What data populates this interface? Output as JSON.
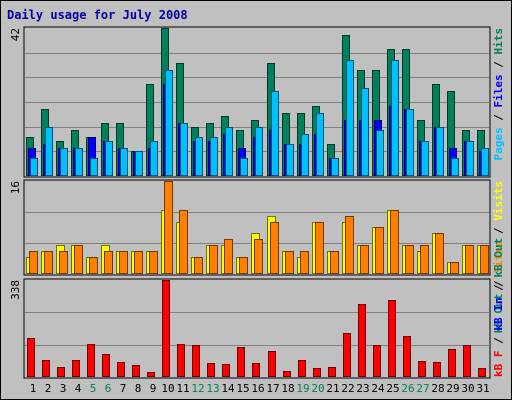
{
  "chart_data": {
    "type": "bar",
    "title": "Daily usage for July 2008",
    "days": [
      "1",
      "2",
      "3",
      "4",
      "5",
      "6",
      "7",
      "8",
      "9",
      "10",
      "11",
      "12",
      "13",
      "14",
      "15",
      "16",
      "17",
      "18",
      "19",
      "20",
      "21",
      "22",
      "23",
      "24",
      "25",
      "26",
      "27",
      "28",
      "29",
      "30",
      "31"
    ],
    "weekend_days": [
      "5",
      "6",
      "12",
      "13",
      "19",
      "20",
      "26",
      "27"
    ],
    "top_panel": {
      "max_label": "42",
      "ymax": 42,
      "legend": [
        "Pages",
        "Files",
        "Hits"
      ],
      "series": [
        {
          "name": "Hits",
          "color": "#00805c",
          "values": [
            11,
            19,
            10,
            13,
            11,
            15,
            15,
            7,
            26,
            42,
            32,
            14,
            15,
            17,
            13,
            16,
            32,
            18,
            18,
            20,
            9,
            40,
            30,
            30,
            36,
            36,
            16,
            26,
            24,
            13,
            13
          ]
        },
        {
          "name": "Files",
          "color": "#0000ff",
          "values": [
            8,
            9,
            8,
            8,
            11,
            10,
            8,
            7,
            8,
            26,
            15,
            10,
            10,
            12,
            8,
            11,
            13,
            9,
            9,
            12,
            5,
            16,
            16,
            16,
            20,
            19,
            10,
            14,
            8,
            10,
            7
          ]
        },
        {
          "name": "Pages",
          "color": "#00c0ff",
          "values": [
            5,
            14,
            8,
            8,
            5,
            10,
            8,
            7,
            10,
            30,
            15,
            11,
            11,
            14,
            5,
            14,
            24,
            9,
            12,
            18,
            5,
            33,
            25,
            13,
            33,
            19,
            10,
            14,
            5,
            10,
            8
          ]
        }
      ]
    },
    "middle_panel": {
      "max_label": "16",
      "ymax": 16,
      "legend": [
        "kB Out",
        "Sites",
        "Visits"
      ],
      "series": [
        {
          "name": "Visits",
          "color": "#ffff00",
          "values": [
            3,
            4,
            5,
            5,
            3,
            5,
            4,
            4,
            4,
            11,
            9,
            3,
            5,
            5,
            3,
            7,
            10,
            4,
            3,
            9,
            4,
            9,
            5,
            8,
            11,
            5,
            4,
            7,
            2,
            5,
            5
          ]
        },
        {
          "name": "Sites",
          "color": "#ff8000",
          "values": [
            4,
            4,
            4,
            5,
            3,
            4,
            4,
            4,
            4,
            16,
            11,
            3,
            5,
            6,
            3,
            6,
            9,
            4,
            4,
            9,
            4,
            10,
            5,
            8,
            11,
            5,
            5,
            7,
            2,
            5,
            5
          ]
        }
      ]
    },
    "bottom_panel": {
      "max_label": "338",
      "ymax": 338,
      "legend": [
        "kB F",
        "kB In",
        "kB Out"
      ],
      "series": [
        {
          "name": "kB F",
          "color": "#ff0000",
          "values": [
            135,
            58,
            36,
            58,
            115,
            80,
            52,
            42,
            18,
            338,
            115,
            112,
            49,
            45,
            106,
            49,
            90,
            22,
            58,
            33,
            35,
            155,
            255,
            110,
            270,
            143,
            55,
            52,
            98,
            110,
            31
          ]
        }
      ]
    }
  }
}
